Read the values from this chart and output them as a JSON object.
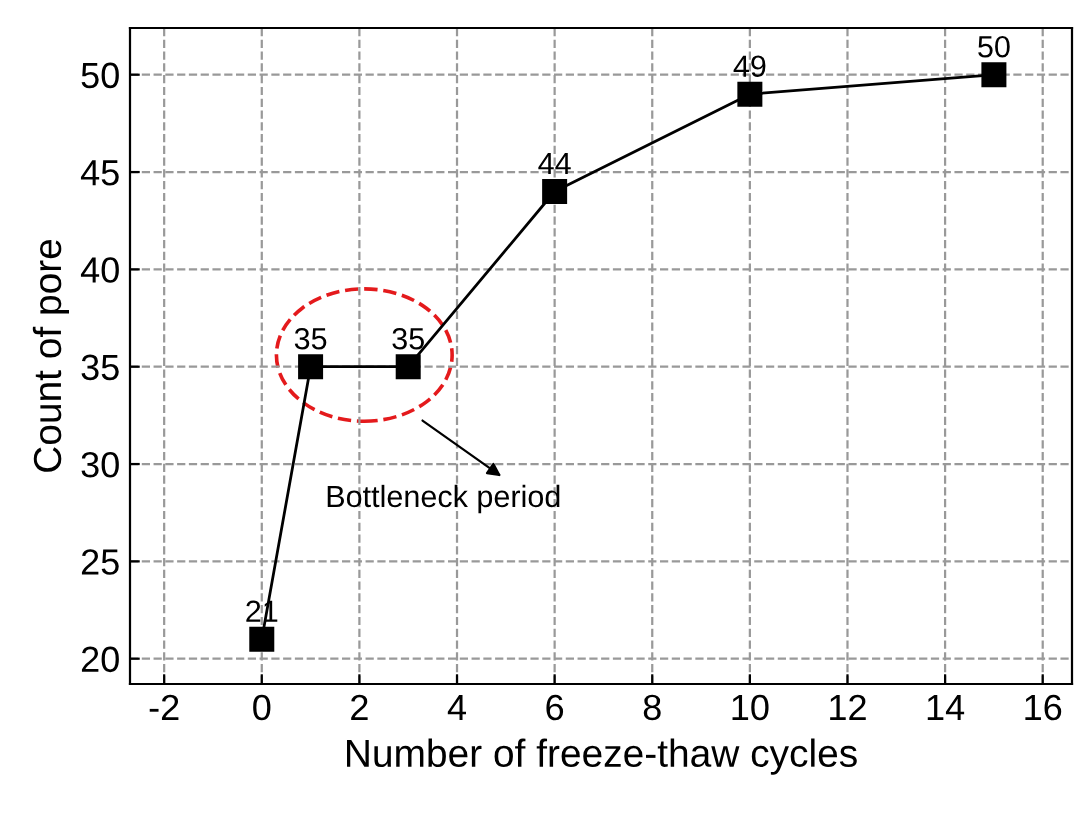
{
  "chart_data": {
    "type": "line",
    "xlabel": "Number of freeze-thaw cycles",
    "ylabel": "Count of pore",
    "x": [
      0,
      1,
      3,
      6,
      10,
      15
    ],
    "series": [
      {
        "color": "#000000",
        "values": [
          21,
          35,
          35,
          44,
          49,
          50
        ]
      }
    ],
    "xlim": [
      -2.7,
      16.6
    ],
    "xticks": [
      -2,
      0,
      2,
      4,
      6,
      8,
      10,
      12,
      14,
      16
    ],
    "ylim": [
      18.7,
      52.4
    ],
    "yticks": [
      20,
      25,
      30,
      35,
      40,
      45,
      50
    ],
    "grid": true,
    "marker": "square",
    "line_style": "solid",
    "data_labels": true,
    "annotations": [
      "Bottleneck period"
    ]
  }
}
